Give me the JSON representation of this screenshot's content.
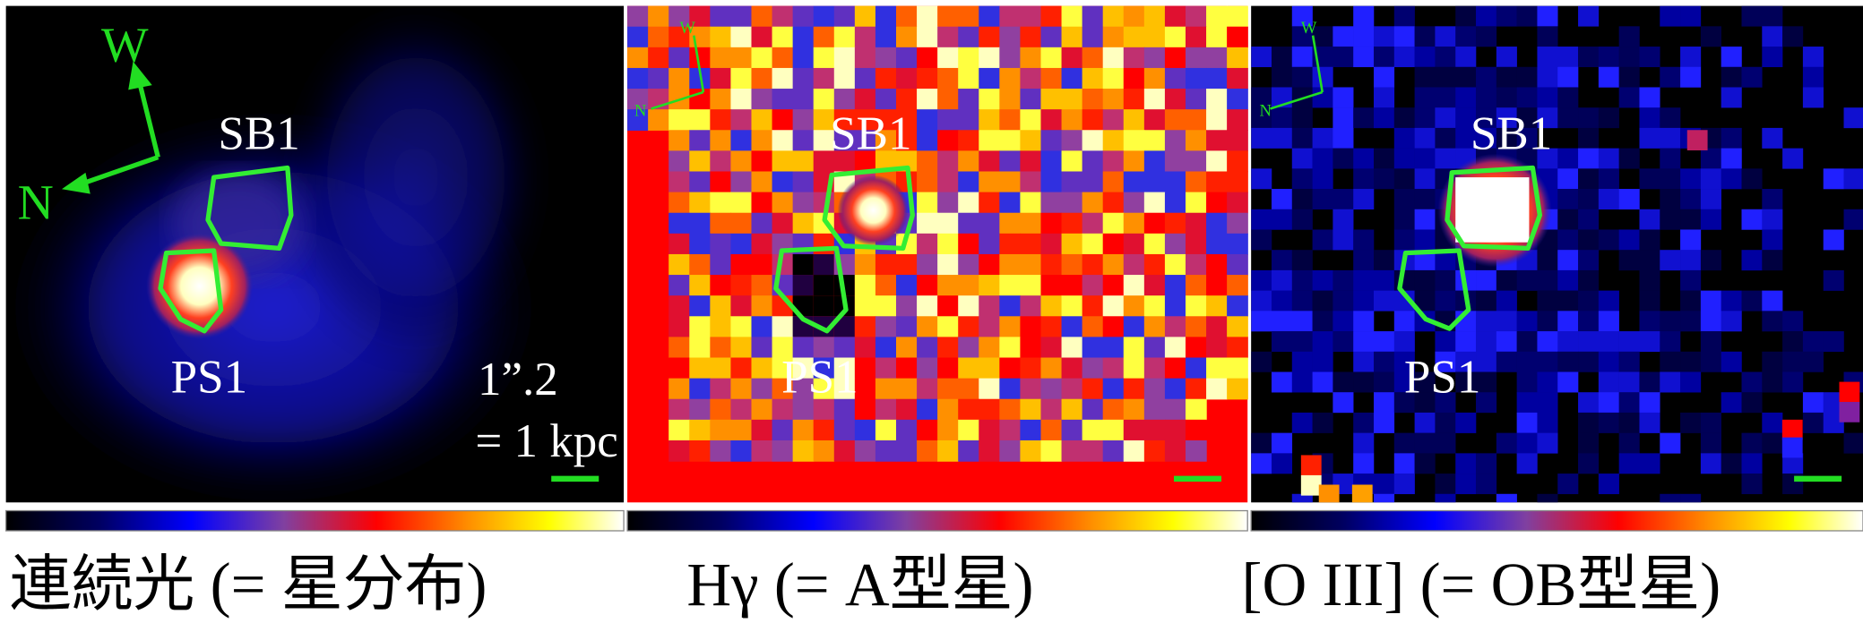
{
  "panels": [
    {
      "compass": {
        "w": "W",
        "n": "N"
      },
      "labels": {
        "sb1": "SB1",
        "ps1": "PS1"
      },
      "scale": {
        "angle": "1”.2",
        "distance": "= 1 kpc"
      },
      "caption": "連続光 (= 星分布)"
    },
    {
      "compass": {
        "w": "W",
        "n": "N"
      },
      "labels": {
        "sb1": "SB1",
        "ps1": "PS1"
      },
      "caption": "Hγ (= A型星)"
    },
    {
      "compass": {
        "w": "W",
        "n": "N"
      },
      "labels": {
        "sb1": "SB1",
        "ps1": "PS1"
      },
      "caption": "[O III] (= OB型星)"
    }
  ]
}
